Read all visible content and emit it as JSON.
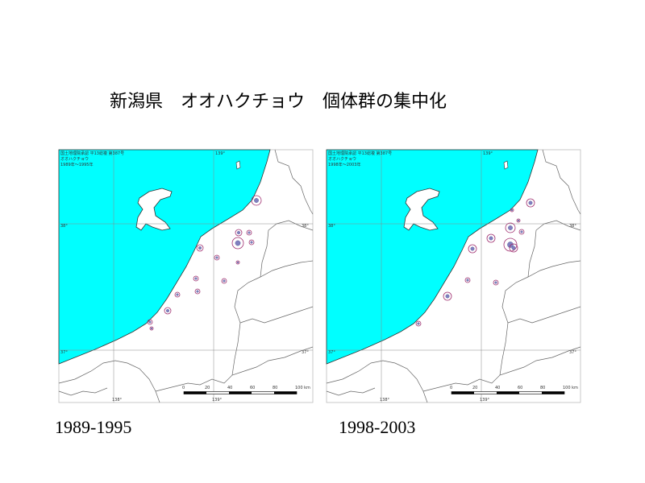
{
  "title": "新潟県　オオハクチョウ　個体群の集中化",
  "maps": [
    {
      "caption": "1989-1995",
      "legend": [
        "国土地理院承認 平13総複 第387号",
        "オオハクチョウ",
        "1989年～1995年"
      ]
    },
    {
      "caption": "1998-2003",
      "legend": [
        "国土地理院承認 平13総複 第387号",
        "オオハクチョウ",
        "1998年～2003年"
      ]
    }
  ],
  "grid_labels": {
    "lon_top": "139°",
    "lat_38_left": "38°",
    "lat_38_right": "38°",
    "lat_37_left": "37°",
    "lat_37_right": "37°",
    "lon_bottom_left": "138°",
    "lon_bottom": "139°"
  },
  "scale_labels": [
    "0",
    "20",
    "40",
    "60",
    "80",
    "100 km"
  ]
}
